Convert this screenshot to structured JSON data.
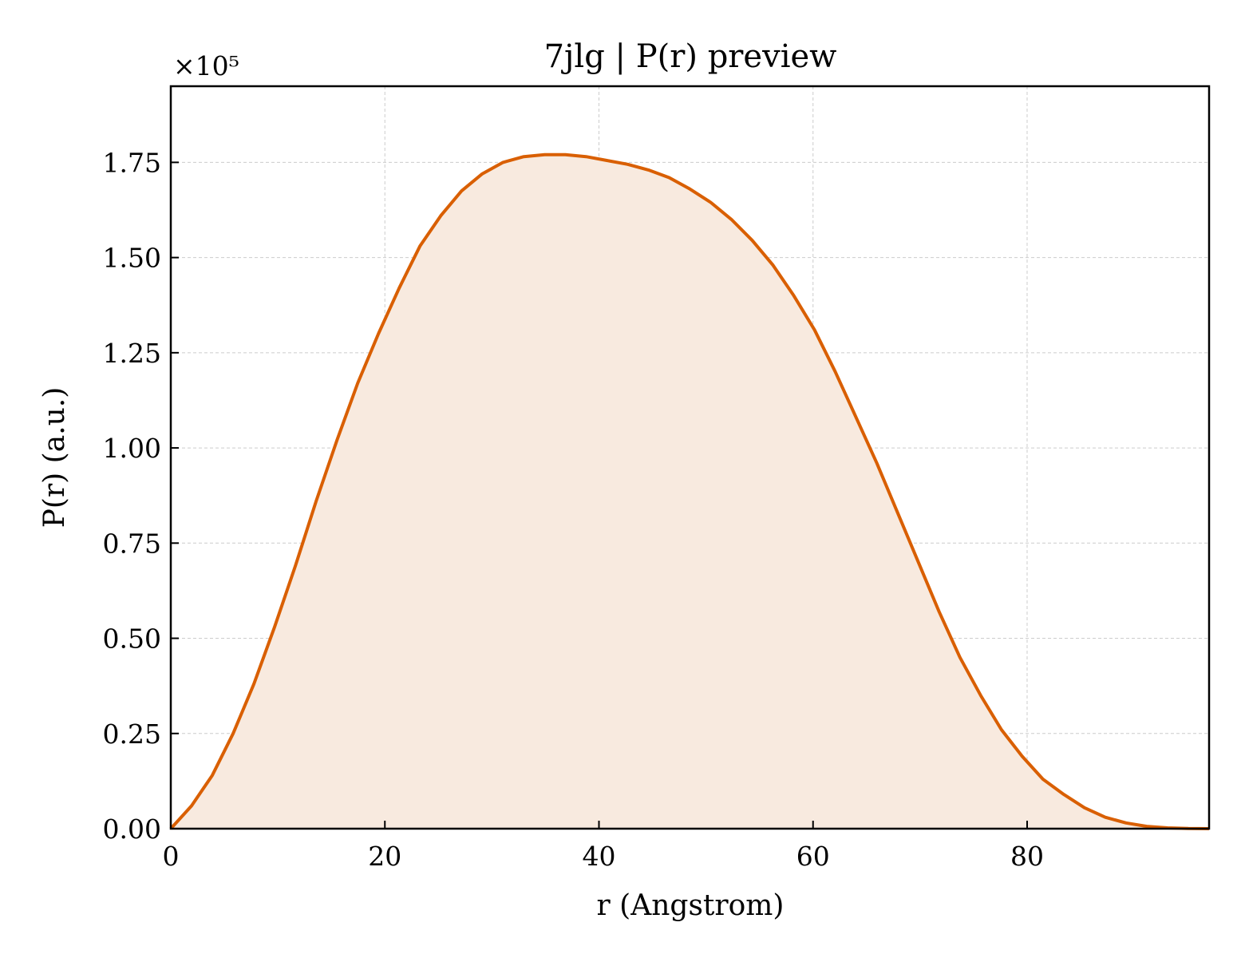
{
  "chart_data": {
    "type": "area",
    "title": "7jlg | P(r) preview",
    "xlabel": "r (Angstrom)",
    "ylabel": "P(r) (a.u.)",
    "y_multiplier_label": "×10⁵",
    "xlim": [
      0,
      97
    ],
    "ylim": [
      0,
      1.95
    ],
    "x_ticks": [
      0,
      20,
      40,
      60,
      80
    ],
    "y_ticks": [
      0.0,
      0.25,
      0.5,
      0.75,
      1.0,
      1.25,
      1.5,
      1.75
    ],
    "x_tick_labels": [
      "0",
      "20",
      "40",
      "60",
      "80"
    ],
    "y_tick_labels": [
      "0.00",
      "0.25",
      "0.50",
      "0.75",
      "1.00",
      "1.25",
      "1.50",
      "1.75"
    ],
    "grid": true,
    "line_color": "#d95f02",
    "fill_color": "#f8eadf",
    "series": [
      {
        "x": [
          0,
          1.94,
          3.88,
          5.82,
          7.76,
          9.7,
          11.64,
          13.58,
          15.52,
          17.46,
          19.4,
          21.34,
          23.28,
          25.22,
          27.16,
          29.1,
          31.04,
          32.98,
          34.92,
          36.86,
          38.8,
          40.74,
          42.68,
          44.62,
          46.56,
          48.5,
          50.44,
          52.38,
          54.32,
          56.26,
          58.2,
          60.14,
          62.08,
          64.02,
          65.96,
          67.9,
          69.84,
          71.78,
          73.72,
          75.66,
          77.6,
          79.54,
          81.48,
          83.42,
          85.36,
          87.3,
          89.24,
          91.18,
          93.12,
          95.06,
          97.0
        ],
        "y": [
          0.0,
          0.06,
          0.14,
          0.25,
          0.38,
          0.53,
          0.69,
          0.86,
          1.02,
          1.17,
          1.3,
          1.42,
          1.53,
          1.61,
          1.675,
          1.72,
          1.75,
          1.765,
          1.77,
          1.77,
          1.765,
          1.755,
          1.745,
          1.73,
          1.71,
          1.68,
          1.645,
          1.6,
          1.545,
          1.48,
          1.4,
          1.31,
          1.2,
          1.08,
          0.96,
          0.83,
          0.7,
          0.57,
          0.45,
          0.35,
          0.26,
          0.19,
          0.13,
          0.09,
          0.055,
          0.03,
          0.015,
          0.006,
          0.002,
          0.0005,
          0.0
        ]
      }
    ]
  }
}
